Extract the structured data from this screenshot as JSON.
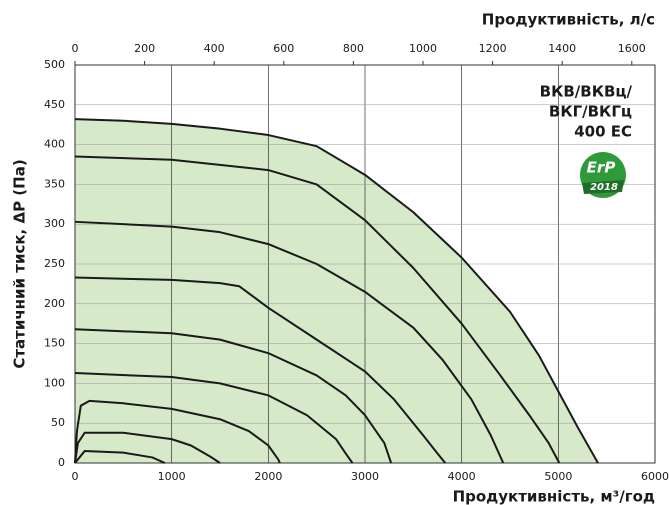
{
  "chart_data": {
    "type": "line",
    "xlabel": "Продуктивність, м³/год",
    "x2label": "Продуктивність, л/с",
    "ylabel": "Статичний тиск, ΔР (Па)",
    "xlim": [
      0,
      6000
    ],
    "xticks": [
      0,
      1000,
      2000,
      3000,
      4000,
      5000,
      6000
    ],
    "x2lim": [
      0,
      1666.7
    ],
    "x2ticks": [
      0,
      200,
      400,
      600,
      800,
      1000,
      1200,
      1400,
      1600
    ],
    "ylim": [
      0,
      500
    ],
    "yticks": [
      0,
      50,
      100,
      150,
      200,
      250,
      300,
      350,
      400,
      450,
      500
    ],
    "grid": true,
    "fill_color": "#d6e9c9",
    "color": "#1a1a1a",
    "annotations": [
      "ВКВ/ВКВц/",
      "ВКГ/ВКГц",
      "400 ЕС"
    ],
    "badge": [
      "ErP",
      "2018"
    ],
    "series": [
      {
        "x": [
          0,
          500,
          1000,
          1500,
          2000,
          2500,
          3000,
          3500,
          4000,
          4500,
          4800,
          5000,
          5200,
          5410
        ],
        "values": [
          432,
          430,
          426,
          420,
          412,
          398,
          362,
          315,
          258,
          190,
          135,
          90,
          45,
          0
        ]
      },
      {
        "x": [
          0,
          1000,
          2000,
          2500,
          3000,
          3500,
          4000,
          4400,
          4700,
          4900,
          5010
        ],
        "values": [
          385,
          381,
          368,
          350,
          305,
          245,
          175,
          110,
          60,
          25,
          0
        ]
      },
      {
        "x": [
          0,
          1000,
          1500,
          2000,
          2500,
          3000,
          3500,
          3800,
          4100,
          4300,
          4430
        ],
        "values": [
          303,
          297,
          290,
          275,
          250,
          215,
          170,
          130,
          80,
          35,
          0
        ]
      },
      {
        "x": [
          0,
          1000,
          1500,
          1700,
          2000,
          2500,
          3000,
          3300,
          3600,
          3750,
          3830
        ],
        "values": [
          233,
          230,
          226,
          222,
          195,
          155,
          115,
          80,
          35,
          12,
          0
        ]
      },
      {
        "x": [
          0,
          1000,
          1500,
          2000,
          2500,
          2800,
          3000,
          3200,
          3270
        ],
        "values": [
          168,
          163,
          155,
          138,
          110,
          85,
          60,
          25,
          0
        ]
      },
      {
        "x": [
          0,
          1000,
          1500,
          2000,
          2400,
          2700,
          2800,
          2870
        ],
        "values": [
          113,
          108,
          100,
          85,
          60,
          30,
          12,
          0
        ]
      },
      {
        "x": [
          0,
          20,
          60,
          150,
          500,
          1000,
          1500,
          1800,
          2000,
          2100,
          2120
        ],
        "values": [
          0,
          40,
          72,
          78,
          75,
          68,
          55,
          40,
          22,
          5,
          0
        ]
      },
      {
        "x": [
          0,
          30,
          100,
          500,
          1000,
          1200,
          1400,
          1500
        ],
        "values": [
          0,
          25,
          38,
          38,
          30,
          22,
          8,
          0
        ]
      },
      {
        "x": [
          0,
          100,
          500,
          800,
          930
        ],
        "values": [
          0,
          15,
          13,
          7,
          0
        ]
      }
    ]
  }
}
